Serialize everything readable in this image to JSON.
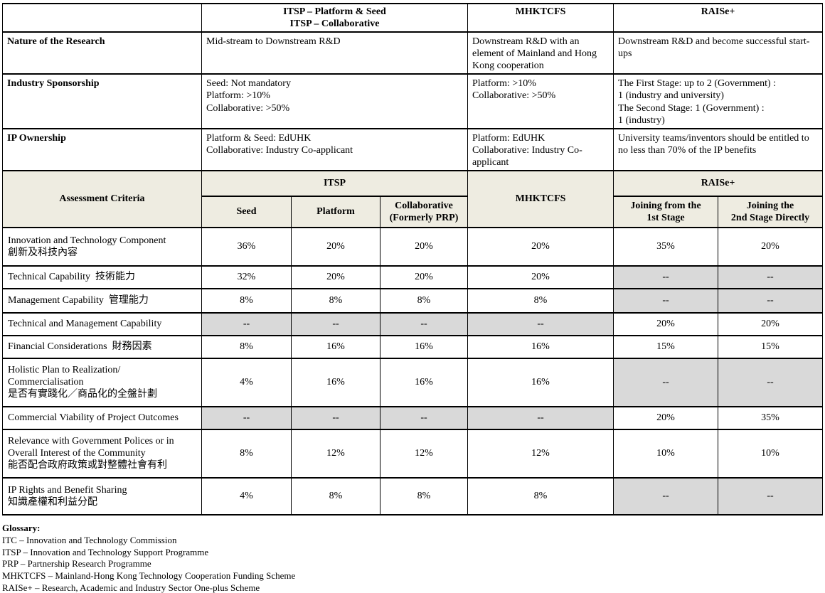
{
  "colors": {
    "header_bg": "#eeece1",
    "na_cell_bg": "#d9d9d9",
    "border": "#000000"
  },
  "info": {
    "program_headers": {
      "itsp": "ITSP – Platform & Seed\nITSP – Collaborative",
      "mhktcfs": "MHKTCFS",
      "raise": "RAISe+"
    },
    "rows": [
      {
        "label": "Nature of the Research",
        "itsp": "Mid-stream to Downstream R&D",
        "mhktcfs": "Downstream R&D with an element of Mainland and Hong Kong cooperation",
        "raise": "Downstream R&D and become successful start-ups"
      },
      {
        "label": "Industry Sponsorship",
        "itsp": "Seed: Not mandatory\nPlatform: >10%\nCollaborative: >50%",
        "mhktcfs": "Platform: >10%\nCollaborative: >50%",
        "raise": "The First Stage: up to 2 (Government) :\n1 (industry and university)\nThe Second Stage: 1 (Government) :\n1 (industry)"
      },
      {
        "label": "IP Ownership",
        "itsp": "Platform & Seed: EdUHK\nCollaborative: Industry Co-applicant",
        "mhktcfs": "Platform: EdUHK\nCollaborative: Industry Co-applicant",
        "raise": "University teams/inventors should be entitled to no less than 70% of the IP benefits"
      }
    ]
  },
  "assessment": {
    "title": "Assessment Criteria",
    "group_itsp": "ITSP",
    "group_mhktcfs": "MHKTCFS",
    "group_raise": "RAISe+",
    "sub_seed": "Seed",
    "sub_platform": "Platform",
    "sub_collaborative": "Collaborative\n(Formerly PRP)",
    "sub_raise_first": "Joining from the\n1st Stage",
    "sub_raise_second": "Joining the\n2nd Stage Directly",
    "rows": [
      {
        "label": "Innovation and Technology Component\n創新及科技內容",
        "values": [
          "36%",
          "20%",
          "20%",
          "20%",
          "35%",
          "20%"
        ]
      },
      {
        "label": "Technical Capability  技術能力",
        "values": [
          "32%",
          "20%",
          "20%",
          "20%",
          "--",
          "--"
        ]
      },
      {
        "label": "Management Capability  管理能力",
        "values": [
          "8%",
          "8%",
          "8%",
          "8%",
          "--",
          "--"
        ]
      },
      {
        "label": "Technical and Management Capability",
        "values": [
          "--",
          "--",
          "--",
          "--",
          "20%",
          "20%"
        ]
      },
      {
        "label": "Financial Considerations  財務因素",
        "values": [
          "8%",
          "16%",
          "16%",
          "16%",
          "15%",
          "15%"
        ]
      },
      {
        "label": "Holistic Plan to Realization/\nCommercialisation\n是否有實踐化／商品化的全盤計劃",
        "values": [
          "4%",
          "16%",
          "16%",
          "16%",
          "--",
          "--"
        ]
      },
      {
        "label": "Commercial Viability of Project Outcomes",
        "values": [
          "--",
          "--",
          "--",
          "--",
          "20%",
          "35%"
        ]
      },
      {
        "label": "Relevance with Government Polices or in\nOverall Interest of the Community\n能否配合政府政策或對整體社會有利",
        "values": [
          "8%",
          "12%",
          "12%",
          "12%",
          "10%",
          "10%"
        ]
      },
      {
        "label": "IP Rights and Benefit Sharing\n知識產權和利益分配",
        "values": [
          "4%",
          "8%",
          "8%",
          "8%",
          "--",
          "--"
        ]
      }
    ]
  },
  "glossary": {
    "title": "Glossary:",
    "items": [
      "ITC – Innovation and Technology Commission",
      "ITSP – Innovation and Technology Support Programme",
      "PRP – Partnership Research Programme",
      "MHKTCFS – Mainland-Hong Kong Technology Cooperation Funding Scheme",
      "RAISe+ – Research, Academic and Industry Sector One-plus Scheme"
    ]
  }
}
